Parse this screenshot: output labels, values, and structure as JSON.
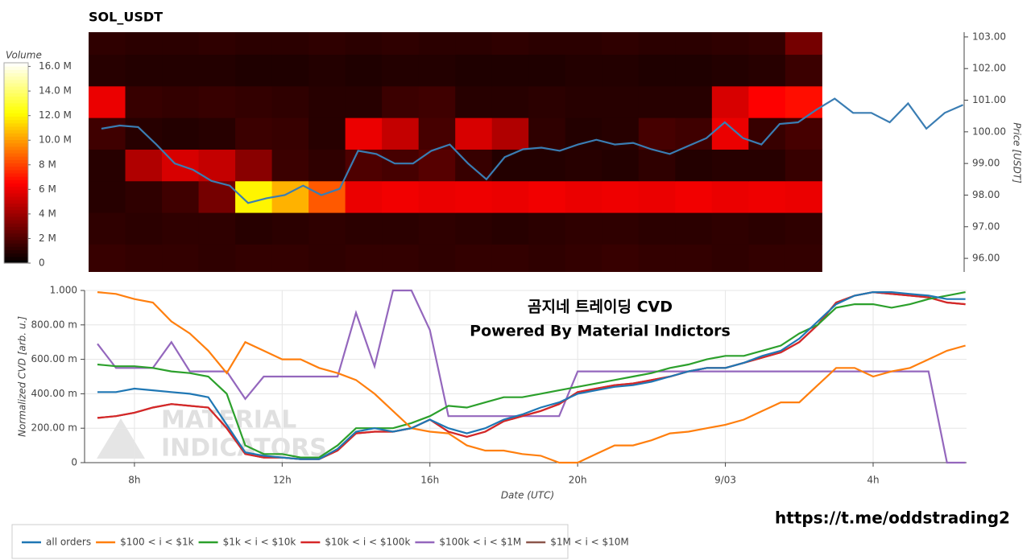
{
  "chart_data": [
    {
      "type": "heatmap",
      "title": "SOL_USDT",
      "colorbar_title": "Volume",
      "ylabel": "Price [USDT]",
      "xlim": [
        6.65,
        30.53
      ],
      "ylim": [
        95.57,
        103.15
      ],
      "yticks": [
        {
          "value": 96,
          "label": "96.00"
        },
        {
          "value": 97,
          "label": "97.00"
        },
        {
          "value": 98,
          "label": "98.00"
        },
        {
          "value": 99,
          "label": "99.00"
        },
        {
          "value": 100,
          "label": "100.00"
        },
        {
          "value": 101,
          "label": "101.00"
        },
        {
          "value": 102,
          "label": "102.00"
        },
        {
          "value": 103,
          "label": "103.00"
        }
      ],
      "clim": [
        0,
        16.3
      ],
      "cticks": [
        0,
        {
          "value": 2,
          "label": "2 M"
        },
        {
          "value": 4,
          "label": "4 M"
        },
        {
          "value": 6,
          "label": "6 M"
        },
        {
          "value": 8,
          "label": "8 M"
        },
        {
          "value": 10,
          "label": "10.0 M"
        },
        {
          "value": 12,
          "label": "12.0 M"
        },
        {
          "value": 14,
          "label": "14.0 M"
        },
        {
          "value": 16,
          "label": "16.0 M"
        }
      ],
      "x_bins": [
        6.65,
        7.65,
        8.65,
        9.65,
        10.65,
        11.65,
        12.65,
        13.65,
        14.65,
        15.65,
        16.65,
        17.65,
        18.65,
        19.65,
        20.65,
        21.65,
        22.65,
        23.65,
        24.65,
        25.65,
        26.65
      ],
      "y_bins": [
        95.45,
        96.45,
        97.45,
        98.45,
        99.45,
        100.45,
        101.45,
        102.45,
        103.45
      ],
      "z": [
        [
          1.4,
          1.3,
          1.3,
          1.2,
          1.3,
          1.3,
          1.2,
          1.3,
          1.3,
          1.2,
          1.3,
          1.3,
          1.2,
          1.3,
          1.4,
          1.3,
          1.3,
          1.2,
          1.3,
          1.3
        ],
        [
          1.2,
          1.1,
          1.2,
          1.2,
          1.0,
          1.1,
          1.2,
          1.1,
          1.1,
          1.2,
          1.1,
          1.0,
          1.1,
          1.2,
          1.2,
          1.1,
          1.1,
          1.2,
          1.1,
          1.2
        ],
        [
          1.0,
          1.2,
          1.6,
          3.0,
          12.0,
          10.5,
          8.5,
          6.0,
          6.2,
          6.0,
          6.1,
          6.0,
          6.2,
          6.0,
          6.1,
          6.0,
          6.2,
          6.0,
          6.1,
          6.0
        ],
        [
          1.0,
          4.5,
          5.5,
          5.0,
          3.5,
          1.5,
          1.2,
          2.0,
          1.8,
          2.2,
          1.4,
          0.9,
          0.9,
          1.0,
          0.9,
          1.2,
          0.9,
          1.0,
          1.0,
          1.4
        ],
        [
          1.6,
          1.0,
          0.9,
          1.0,
          1.5,
          1.4,
          1.0,
          6.0,
          5.0,
          1.8,
          5.5,
          4.5,
          1.2,
          0.9,
          1.0,
          1.8,
          1.6,
          6.0,
          1.4,
          1.8
        ],
        [
          6.0,
          1.4,
          1.3,
          1.4,
          1.3,
          1.2,
          1.0,
          1.0,
          1.5,
          1.6,
          1.0,
          1.0,
          1.1,
          1.0,
          1.0,
          1.0,
          1.0,
          5.5,
          6.5,
          6.8
        ],
        [
          1.0,
          0.9,
          0.9,
          0.9,
          0.8,
          0.8,
          0.9,
          0.8,
          0.9,
          0.9,
          0.8,
          0.8,
          0.8,
          0.9,
          0.9,
          0.8,
          0.8,
          0.9,
          1.0,
          1.5
        ],
        [
          1.2,
          1.1,
          1.1,
          1.2,
          1.1,
          1.1,
          1.2,
          1.1,
          1.2,
          1.1,
          1.1,
          1.2,
          1.1,
          1.1,
          1.2,
          1.1,
          1.1,
          1.2,
          1.3,
          3.0
        ]
      ],
      "line": {
        "color": "#3a7db3",
        "x": [
          7,
          7.5,
          8,
          8.5,
          9,
          9.5,
          10,
          10.5,
          11,
          11.5,
          12,
          12.5,
          13,
          13.5,
          14,
          14.5,
          15,
          15.5,
          16,
          16.5,
          17,
          17.5,
          18,
          18.5,
          19,
          19.5,
          20,
          20.5,
          21,
          21.5,
          22,
          22.5,
          23,
          23.5,
          24,
          24.5,
          25,
          25.5,
          26,
          26.5,
          27,
          27.5,
          28,
          28.5,
          29,
          29.5,
          30,
          30.5
        ],
        "values": [
          100.1,
          100.2,
          100.15,
          99.6,
          99.0,
          98.8,
          98.45,
          98.3,
          97.75,
          97.9,
          98.0,
          98.3,
          98.0,
          98.2,
          99.4,
          99.3,
          99.0,
          99.0,
          99.4,
          99.6,
          99.0,
          98.5,
          99.2,
          99.45,
          99.5,
          99.4,
          99.6,
          99.75,
          99.6,
          99.65,
          99.45,
          99.3,
          99.55,
          99.8,
          100.3,
          99.8,
          99.6,
          100.25,
          100.3,
          100.7,
          101.05,
          100.6,
          100.6,
          100.3,
          100.9,
          100.1,
          100.6,
          100.85
        ]
      }
    },
    {
      "type": "line",
      "title": "곰지네 트레이딩 CVD",
      "subtitle": "Powered By Material Indictors",
      "xlabel": "Date (UTC)",
      "ylabel": "Normalized CVD [arb. u.]",
      "xlim": [
        6.65,
        30.53
      ],
      "xticks": [
        {
          "value": 8,
          "label": "8h"
        },
        {
          "value": 12,
          "label": "12h"
        },
        {
          "value": 16,
          "label": "16h"
        },
        {
          "value": 20,
          "label": "20h"
        },
        {
          "value": 24,
          "label": "9/03"
        },
        {
          "value": 28,
          "label": "4h"
        }
      ],
      "ylim": [
        0,
        1.0
      ],
      "yticks": [
        0,
        {
          "value": 0.2,
          "label": "200.00 m"
        },
        {
          "value": 0.4,
          "label": "400.00 m"
        },
        {
          "value": 0.6,
          "label": "600.00 m"
        },
        {
          "value": 0.8,
          "label": "800.00 m"
        },
        {
          "value": 1,
          "label": "1.000"
        }
      ],
      "grid": true,
      "legend": "bottom",
      "x": [
        7,
        7.5,
        8,
        8.5,
        9,
        9.5,
        10,
        10.5,
        11,
        11.5,
        12,
        12.5,
        13,
        13.5,
        14,
        14.5,
        15,
        15.5,
        16,
        16.5,
        17,
        17.5,
        18,
        18.5,
        19,
        19.5,
        20,
        20.5,
        21,
        21.5,
        22,
        22.5,
        23,
        23.5,
        24,
        24.5,
        25,
        25.5,
        26,
        26.5,
        27,
        27.5,
        28,
        28.5,
        29,
        29.5,
        30,
        30.5
      ],
      "series": [
        {
          "name": "all orders",
          "color": "#1f77b4",
          "values": [
            0.41,
            0.41,
            0.43,
            0.42,
            0.41,
            0.4,
            0.38,
            0.22,
            0.06,
            0.04,
            0.03,
            0.02,
            0.02,
            0.08,
            0.18,
            0.2,
            0.18,
            0.2,
            0.25,
            0.2,
            0.17,
            0.2,
            0.25,
            0.28,
            0.32,
            0.35,
            0.4,
            0.42,
            0.44,
            0.45,
            0.47,
            0.5,
            0.53,
            0.55,
            0.55,
            0.58,
            0.62,
            0.65,
            0.72,
            0.82,
            0.92,
            0.97,
            0.99,
            0.99,
            0.98,
            0.97,
            0.95,
            0.95
          ]
        },
        {
          "name": "$100 < i < $1k",
          "color": "#ff7f0e",
          "values": [
            0.99,
            0.98,
            0.95,
            0.93,
            0.82,
            0.75,
            0.65,
            0.52,
            0.7,
            0.65,
            0.6,
            0.6,
            0.55,
            0.52,
            0.48,
            0.4,
            0.3,
            0.2,
            0.18,
            0.17,
            0.1,
            0.07,
            0.07,
            0.05,
            0.04,
            0.0,
            0.0,
            0.05,
            0.1,
            0.1,
            0.13,
            0.17,
            0.18,
            0.2,
            0.22,
            0.25,
            0.3,
            0.35,
            0.35,
            0.45,
            0.55,
            0.55,
            0.5,
            0.53,
            0.55,
            0.6,
            0.65,
            0.68
          ]
        },
        {
          "name": "$1k < i < $10k",
          "color": "#2ca02c",
          "values": [
            0.57,
            0.56,
            0.56,
            0.55,
            0.53,
            0.52,
            0.5,
            0.4,
            0.1,
            0.05,
            0.05,
            0.03,
            0.03,
            0.1,
            0.2,
            0.2,
            0.2,
            0.23,
            0.27,
            0.33,
            0.32,
            0.35,
            0.38,
            0.38,
            0.4,
            0.42,
            0.44,
            0.46,
            0.48,
            0.5,
            0.52,
            0.55,
            0.57,
            0.6,
            0.62,
            0.62,
            0.65,
            0.68,
            0.75,
            0.8,
            0.9,
            0.92,
            0.92,
            0.9,
            0.92,
            0.95,
            0.97,
            0.99
          ]
        },
        {
          "name": "$10k < i < $100k",
          "color": "#d62728",
          "values": [
            0.26,
            0.27,
            0.29,
            0.32,
            0.34,
            0.33,
            0.32,
            0.2,
            0.05,
            0.03,
            0.03,
            0.02,
            0.02,
            0.07,
            0.17,
            0.18,
            0.18,
            0.2,
            0.25,
            0.18,
            0.15,
            0.18,
            0.24,
            0.27,
            0.3,
            0.34,
            0.41,
            0.43,
            0.45,
            0.46,
            0.48,
            0.5,
            0.53,
            0.55,
            0.55,
            0.58,
            0.61,
            0.64,
            0.7,
            0.8,
            0.93,
            0.97,
            0.99,
            0.98,
            0.97,
            0.96,
            0.93,
            0.92
          ]
        },
        {
          "name": "$100k < i < $1M",
          "color": "#9467bd",
          "values": [
            0.69,
            0.55,
            0.55,
            0.55,
            0.7,
            0.53,
            0.53,
            0.53,
            0.37,
            0.5,
            0.5,
            0.5,
            0.5,
            0.5,
            0.87,
            0.56,
            1.0,
            1.0,
            0.77,
            0.27,
            0.27,
            0.27,
            0.27,
            0.27,
            0.27,
            0.27,
            0.53,
            0.53,
            0.53,
            0.53,
            0.53,
            0.53,
            0.53,
            0.53,
            0.53,
            0.53,
            0.53,
            0.53,
            0.53,
            0.53,
            0.53,
            0.53,
            0.53,
            0.53,
            0.53,
            0.53,
            0.0,
            0.0
          ]
        },
        {
          "name": "$1M < i < $10M",
          "color": "#8c564b",
          "values": [
            0.26,
            0.27,
            0.29,
            0.32,
            0.34,
            0.33,
            0.32,
            0.2,
            0.05,
            0.03,
            0.03,
            0.02,
            0.02,
            0.07,
            0.17,
            0.18,
            0.18,
            0.2,
            0.25,
            0.18,
            0.15,
            0.18,
            0.24,
            0.27,
            0.3,
            0.34,
            0.41,
            0.43,
            0.45,
            0.46,
            0.48,
            0.5,
            0.53,
            0.55,
            0.55,
            0.58,
            0.61,
            0.64,
            0.7,
            0.8,
            0.93,
            0.97,
            0.99,
            0.98,
            0.97,
            0.96,
            0.93,
            0.92
          ]
        }
      ]
    }
  ],
  "watermark": [
    "MATERIAL",
    "INDICATORS"
  ],
  "link": "https://t.me/oddstrading2"
}
